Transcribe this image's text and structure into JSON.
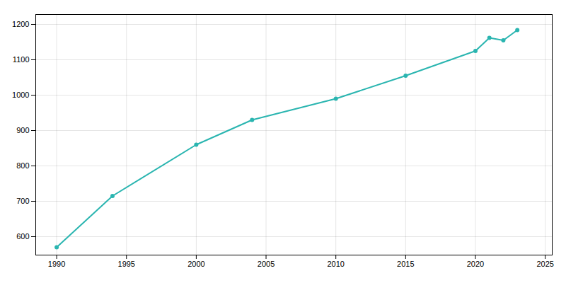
{
  "chart_data": {
    "type": "line",
    "x": [
      1990,
      1994,
      2000,
      2004,
      2010,
      2015,
      2020,
      2021,
      2022,
      2023
    ],
    "values": [
      570,
      715,
      860,
      930,
      990,
      1055,
      1125,
      1162,
      1155,
      1184
    ],
    "color": "#2ab5b0",
    "marker": "circle",
    "xlim": [
      1988.5,
      2025.5
    ],
    "ylim": [
      548,
      1228
    ],
    "xticks": [
      1990,
      1995,
      2000,
      2005,
      2010,
      2015,
      2020,
      2025
    ],
    "yticks": [
      600,
      700,
      800,
      900,
      1000,
      1100,
      1200
    ],
    "grid": true
  }
}
